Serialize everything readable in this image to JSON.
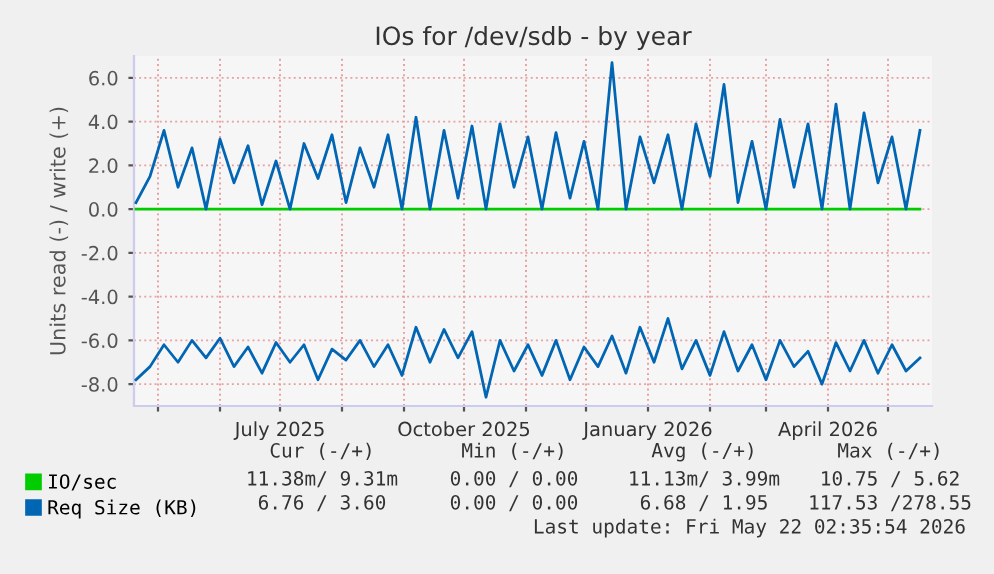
{
  "chart_data": {
    "type": "line",
    "title": "IOs for /dev/sdb - by year",
    "ylabel": "Units read (-) / write (+)",
    "x": [
      "2025-04-20",
      "2025-04-27",
      "2025-05-04",
      "2025-05-11",
      "2025-05-18",
      "2025-05-25",
      "2025-06-01",
      "2025-06-08",
      "2025-06-15",
      "2025-06-22",
      "2025-06-29",
      "2025-07-06",
      "2025-07-13",
      "2025-07-20",
      "2025-07-27",
      "2025-08-03",
      "2025-08-10",
      "2025-08-17",
      "2025-08-24",
      "2025-08-31",
      "2025-09-07",
      "2025-09-14",
      "2025-09-21",
      "2025-09-28",
      "2025-10-05",
      "2025-10-12",
      "2025-10-19",
      "2025-10-26",
      "2025-11-02",
      "2025-11-09",
      "2025-11-16",
      "2025-11-23",
      "2025-11-30",
      "2025-12-07",
      "2025-12-14",
      "2025-12-21",
      "2025-12-28",
      "2026-01-04",
      "2026-01-11",
      "2026-01-18",
      "2026-01-25",
      "2026-02-01",
      "2026-02-08",
      "2026-02-15",
      "2026-02-22",
      "2026-03-01",
      "2026-03-08",
      "2026-03-15",
      "2026-03-22",
      "2026-03-29",
      "2026-04-05",
      "2026-04-12",
      "2026-04-19",
      "2026-04-26",
      "2026-05-03",
      "2026-05-10",
      "2026-05-17"
    ],
    "series": [
      {
        "name": "IO/sec",
        "color": "#00cc00",
        "values": [
          0,
          0,
          0,
          0,
          0,
          0,
          0,
          0,
          0,
          0,
          0,
          0,
          0,
          0,
          0,
          0,
          0,
          0,
          0,
          0,
          0,
          0,
          0,
          0,
          0,
          0,
          0,
          0,
          0,
          0,
          0,
          0,
          0,
          0,
          0,
          0,
          0,
          0,
          0,
          0,
          0,
          0,
          0,
          0,
          0,
          0,
          0,
          0,
          0,
          0,
          0,
          0,
          0,
          0,
          0,
          0,
          0
        ]
      },
      {
        "name": "Req Size (KB)",
        "color": "#0066b3",
        "values": [
          0.3,
          1.5,
          3.6,
          1.0,
          2.8,
          0.0,
          3.2,
          1.2,
          2.9,
          0.2,
          2.2,
          0.0,
          3.0,
          1.4,
          3.4,
          0.3,
          2.8,
          1.0,
          3.4,
          0.0,
          4.2,
          0.0,
          3.6,
          0.5,
          3.8,
          0.0,
          3.9,
          1.0,
          3.3,
          0.0,
          3.5,
          0.5,
          3.1,
          0.0,
          6.7,
          0.0,
          3.3,
          1.2,
          3.4,
          0.0,
          3.9,
          1.5,
          5.7,
          0.3,
          3.1,
          0.0,
          4.1,
          1.0,
          3.9,
          0.0,
          4.8,
          0.0,
          4.4,
          1.2,
          3.3,
          0.0,
          3.6
        ]
      },
      {
        "color": "#0066b3",
        "values": [
          -7.8,
          -7.2,
          -6.2,
          -7.0,
          -6.0,
          -6.8,
          -5.9,
          -7.2,
          -6.3,
          -7.5,
          -6.1,
          -7.0,
          -6.2,
          -7.8,
          -6.4,
          -6.9,
          -6.0,
          -7.2,
          -6.2,
          -7.6,
          -5.4,
          -7.0,
          -5.5,
          -6.8,
          -5.6,
          -8.6,
          -6.0,
          -7.4,
          -6.2,
          -7.6,
          -6.0,
          -7.8,
          -6.3,
          -7.2,
          -5.8,
          -7.5,
          -5.4,
          -7.0,
          -5.0,
          -7.3,
          -6.0,
          -7.6,
          -5.6,
          -7.4,
          -6.2,
          -7.8,
          -6.0,
          -7.2,
          -6.5,
          -8.0,
          -6.1,
          -7.4,
          -6.0,
          -7.5,
          -6.2,
          -7.4,
          -6.8
        ]
      }
    ],
    "xlim": [
      "2025-04-19",
      "2026-05-23"
    ],
    "xticks": [
      {
        "value": "2025-05-01",
        "label": null
      },
      {
        "value": "2025-06-01",
        "label": null
      },
      {
        "value": "2025-07-01",
        "label": "July 2025"
      },
      {
        "value": "2025-08-01",
        "label": null
      },
      {
        "value": "2025-09-01",
        "label": null
      },
      {
        "value": "2025-10-01",
        "label": "October 2025"
      },
      {
        "value": "2025-11-01",
        "label": null
      },
      {
        "value": "2025-12-01",
        "label": null
      },
      {
        "value": "2026-01-01",
        "label": "January 2026"
      },
      {
        "value": "2026-02-01",
        "label": null
      },
      {
        "value": "2026-03-01",
        "label": null
      },
      {
        "value": "2026-04-01",
        "label": "April 2026"
      },
      {
        "value": "2026-05-01",
        "label": null
      }
    ],
    "ylim": [
      -9,
      7
    ],
    "yticks": [
      {
        "value": -8,
        "label": "-8.0"
      },
      {
        "value": -6,
        "label": "-6.0"
      },
      {
        "value": -4,
        "label": "-4.0"
      },
      {
        "value": -2,
        "label": "-2.0"
      },
      {
        "value": 0,
        "label": "0.0"
      },
      {
        "value": 2,
        "label": "2.0"
      },
      {
        "value": 4,
        "label": "4.0"
      },
      {
        "value": 6,
        "label": "6.0"
      }
    ],
    "grid": true,
    "legend": "bottom left",
    "marker": "none",
    "line_style": "solid",
    "annotations": [
      "Cur (-/+)",
      "Min (-/+)",
      "Avg (-/+)",
      "Max (-/+)",
      "11.38m/ 9.31m",
      "0.00 / 0.00",
      "11.13m/ 3.99m",
      "10.75 / 5.62",
      "6.76 / 3.60",
      "0.00 / 0.00",
      "6.68 / 1.95",
      "117.53 /278.55",
      "Last update: Fri May 22 02:35:54 2026"
    ]
  }
}
